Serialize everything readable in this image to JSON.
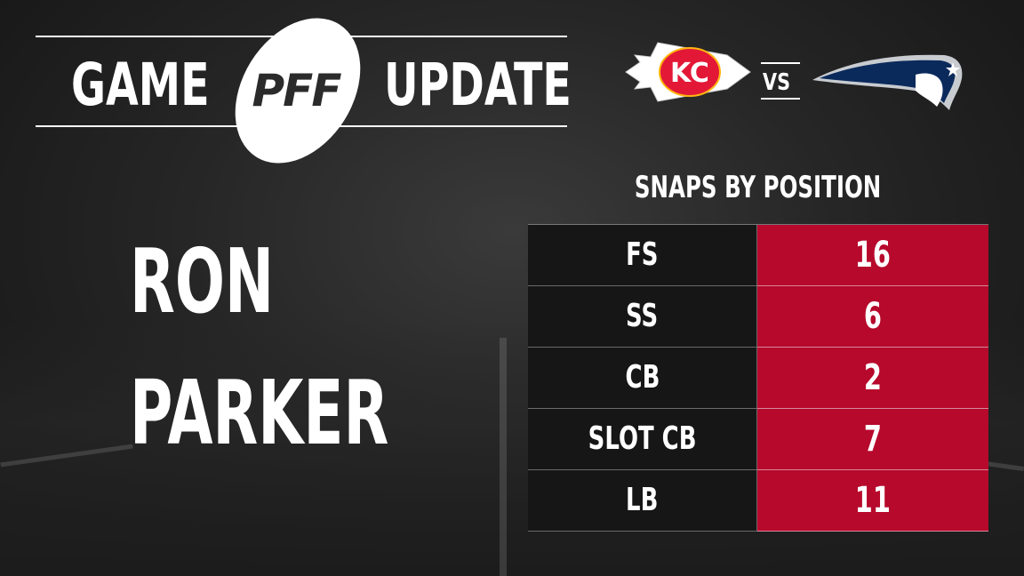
{
  "header": {
    "word_left": "GAME",
    "brand": "PFF",
    "word_right": "UPDATE"
  },
  "matchup": {
    "home_logo": "chiefs-logo",
    "home_logo_text": "KC",
    "versus": "VS",
    "away_logo": "patriots-logo",
    "colors": {
      "chiefs_red": "#e31837",
      "chiefs_gold": "#ffb612",
      "patriots_navy": "#0b2a5c",
      "silver": "#c8ccd0"
    }
  },
  "player": {
    "first_name": "RON",
    "last_name": "PARKER"
  },
  "snaps": {
    "title": "SNAPS BY POSITION",
    "rows": [
      {
        "position": "FS",
        "snaps": "16"
      },
      {
        "position": "SS",
        "snaps": "6"
      },
      {
        "position": "CB",
        "snaps": "2"
      },
      {
        "position": "SLOT CB",
        "snaps": "7"
      },
      {
        "position": "LB",
        "snaps": "11"
      }
    ],
    "colors": {
      "value_cell": "#b6092c",
      "position_cell": "#161616"
    }
  }
}
